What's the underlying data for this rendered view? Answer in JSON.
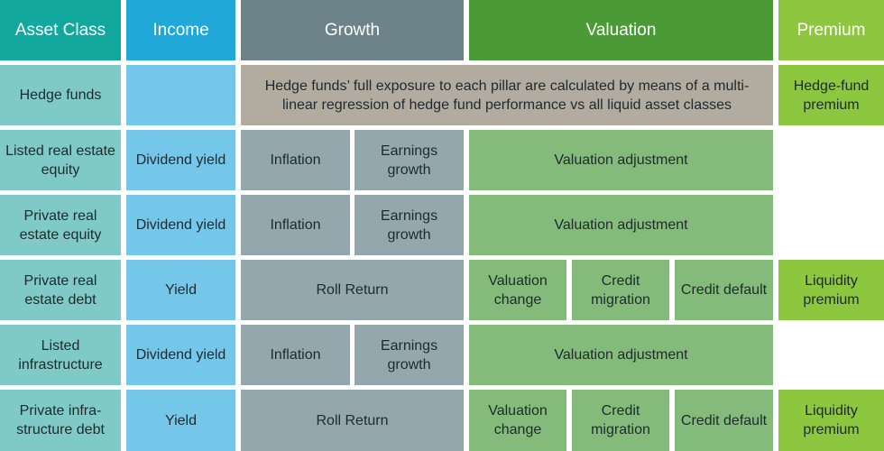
{
  "headers": {
    "asset_class": "Asset Class",
    "income": "Income",
    "growth": "Growth",
    "valuation": "Valuation",
    "premium": "Premium"
  },
  "rows": [
    {
      "asset": "Hedge funds",
      "income": "",
      "growth_note": "Hedge funds’ full exposure to each pillar are calculated by means of a multi-linear regression of hedge fund performance vs all liquid asset classes",
      "premium": "Hedge-fund premium"
    },
    {
      "asset": "Listed real estate equity",
      "income": "Dividend yield",
      "growth_a": "Inflation",
      "growth_b": "Earnings growth",
      "valuation": "Valuation adjustment"
    },
    {
      "asset": "Private real estate equity",
      "income": "Dividend yield",
      "growth_a": "Inflation",
      "growth_b": "Earnings growth",
      "valuation": "Valuation adjustment"
    },
    {
      "asset": "Private real estate debt",
      "income": "Yield",
      "growth": "Roll Return",
      "valuation_a": "Valuation change",
      "valuation_b": "Credit migration",
      "valuation_c": "Credit default",
      "premium": "Liquidity premium"
    },
    {
      "asset": "Listed infrastructure",
      "income": "Dividend yield",
      "growth_a": "Inflation",
      "growth_b": "Earnings growth",
      "valuation": "Valuation adjustment"
    },
    {
      "asset": "Private infra-structure debt",
      "income": "Yield",
      "growth": "Roll Return",
      "valuation_a": "Valuation change",
      "valuation_b": "Credit migration",
      "valuation_c": "Credit default",
      "premium": "Liquidity premium"
    }
  ],
  "colors": {
    "asset_header": "#13a89e",
    "asset_cell": "#7fcac6",
    "income_header": "#1fa8d8",
    "income_cell": "#74c7e8",
    "growth_header": "#6b8389",
    "growth_cell": "#93a7ac",
    "growth_note": "#b2aba0",
    "valuation_header": "#4a9a35",
    "valuation_cell": "#84bb7b",
    "premium_header": "#8dc63f",
    "premium_cell": "#8dc63f"
  }
}
